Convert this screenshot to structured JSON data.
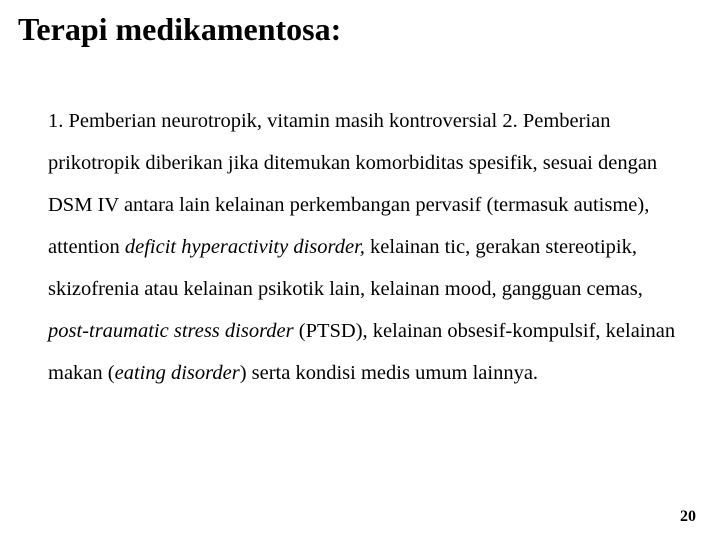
{
  "slide": {
    "background_color": "#ffffff",
    "text_color": "#000000",
    "title": {
      "text": "Terapi medikamentosa:",
      "font_size_pt": 32,
      "font_weight": "bold",
      "font_family": "Times New Roman"
    },
    "body": {
      "font_size_pt": 20.5,
      "line_height": 2.05,
      "font_family": "Times New Roman",
      "segments": [
        {
          "text": "1. Pemberian neurotropik, vitamin masih kontroversial "
        },
        {
          "text": "2. Pemberian prikotropik diberikan jika ditemukan komorbiditas spesifik, sesuai dengan DSM IV antara lain kelainan perkembangan pervasif (termasuk autisme), attention "
        },
        {
          "text": "deficit hyperactivity disorder,",
          "italic": true
        },
        {
          "text": " kelainan tic, gerakan stereotipik, skizofrenia atau kelainan psikotik lain, kelainan mood, gangguan cemas, "
        },
        {
          "text": "post-traumatic stress disorder",
          "italic": true
        },
        {
          "text": " (PTSD), kelainan obsesif-kompulsif, kelainan makan ("
        },
        {
          "text": "eating disorder",
          "italic": true
        },
        {
          "text": ") serta kondisi medis umum lainnya."
        }
      ]
    },
    "page_number": "20",
    "page_number_font_size_pt": 16
  }
}
